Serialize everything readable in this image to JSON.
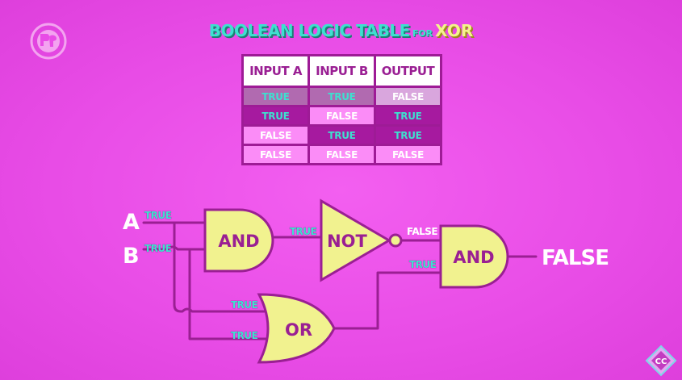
{
  "title": {
    "main": "BOOLEAN LOGIC TABLE",
    "for": "FOR",
    "highlight": "XOR"
  },
  "truth_table": {
    "headers": [
      "INPUT A",
      "INPUT B",
      "OUTPUT"
    ],
    "rows": [
      [
        "TRUE",
        "TRUE",
        "FALSE"
      ],
      [
        "TRUE",
        "FALSE",
        "TRUE"
      ],
      [
        "FALSE",
        "TRUE",
        "TRUE"
      ],
      [
        "FALSE",
        "FALSE",
        "FALSE"
      ]
    ]
  },
  "circuit": {
    "input_a": "A",
    "input_b": "B",
    "a_value": "TRUE",
    "b_value": "TRUE",
    "gates": {
      "and1": "AND",
      "not": "NOT",
      "or": "OR",
      "and2": "AND"
    },
    "signals": {
      "and1_out": "TRUE",
      "not_out": "FALSE",
      "or_a_in": "TRUE",
      "or_b_in": "TRUE",
      "or_out": "TRUE"
    },
    "output": "FALSE"
  },
  "logos": {
    "top_left": "pbs-logo",
    "bottom_right": "crash-course-logo",
    "bottom_right_text": "CC"
  },
  "colors": {
    "background": "#e84ce6",
    "gate_fill": "#f1f28f",
    "gate_stroke": "#9a1f93",
    "wire": "#9a1f93",
    "true_text": "#3ee0cf",
    "false_text": "#ffffff",
    "table_border": "#9e1b96"
  }
}
